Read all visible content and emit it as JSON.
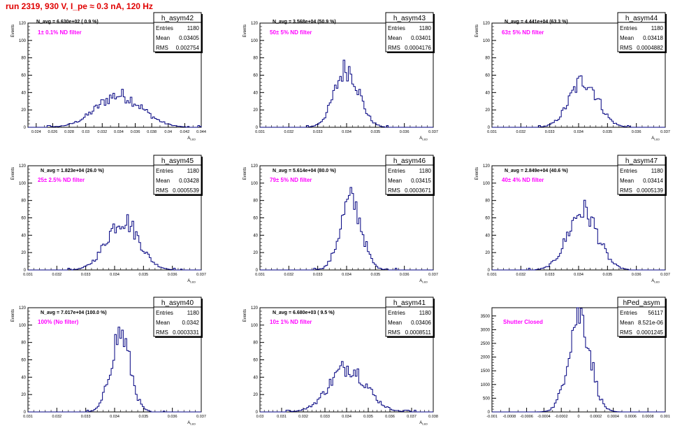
{
  "header": {
    "title": "run 2319,   930 V, I_pe ≈ 0.3 nA, 120 Hz"
  },
  "colors": {
    "histogram": "#000080",
    "annotation": "#ff00ff",
    "title": "#e00000"
  },
  "chart_data": [
    {
      "type": "bar",
      "stats_title": "h_asym42",
      "entries": "1180",
      "mean": "0.03405",
      "rms": "0.002754",
      "navg_text": "N_avg = 6.630e+02 ( 0.9 %)",
      "filter_text": "1± 0.1% ND filter",
      "xlabel": "A",
      "xlabel_sub": "LED",
      "ylabel": "Events",
      "xlim": [
        0.023,
        0.044
      ],
      "ylim": [
        0,
        120
      ],
      "xticks": [
        0.024,
        0.026,
        0.028,
        0.03,
        0.032,
        0.034,
        0.036,
        0.038,
        0.04,
        0.042,
        0.044
      ],
      "xtick_labels": [
        "0.024",
        "0.026",
        "0.028",
        "0.03",
        "0.032",
        "0.034",
        "0.036",
        "0.038",
        "0.04",
        "0.042",
        "0.044"
      ],
      "yticks": [
        0,
        20,
        40,
        60,
        80,
        100,
        120
      ],
      "ytick_labels": [
        "0",
        "20",
        "40",
        "60",
        "80",
        "100",
        "120"
      ],
      "mu": 0.03405,
      "sigma": 0.002754,
      "peak": 37
    },
    {
      "type": "bar",
      "stats_title": "h_asym43",
      "entries": "1180",
      "mean": "0.03401",
      "rms": "0.0004176",
      "navg_text": "N_avg = 3.568e+04 (50.9 %)",
      "filter_text": "50± 5% ND filter",
      "xlabel": "A",
      "xlabel_sub": "LED",
      "ylabel": "Events",
      "xlim": [
        0.031,
        0.037
      ],
      "ylim": [
        0,
        120
      ],
      "xticks": [
        0.031,
        0.032,
        0.033,
        0.034,
        0.035,
        0.036,
        0.037
      ],
      "xtick_labels": [
        "0.031",
        "0.032",
        "0.033",
        "0.034",
        "0.035",
        "0.036",
        "0.037"
      ],
      "yticks": [
        0,
        20,
        40,
        60,
        80,
        100,
        120
      ],
      "ytick_labels": [
        "0",
        "20",
        "40",
        "60",
        "80",
        "100",
        "120"
      ],
      "mu": 0.03401,
      "sigma": 0.0004176,
      "peak": 68
    },
    {
      "type": "bar",
      "stats_title": "h_asym44",
      "entries": "1180",
      "mean": "0.03418",
      "rms": "0.0004882",
      "navg_text": "N_avg = 4.441e+04 (63.3 %)",
      "filter_text": "63± 5% ND filter",
      "xlabel": "A",
      "xlabel_sub": "LED",
      "ylabel": "Events",
      "xlim": [
        0.031,
        0.037
      ],
      "ylim": [
        0,
        120
      ],
      "xticks": [
        0.031,
        0.032,
        0.033,
        0.034,
        0.035,
        0.036,
        0.037
      ],
      "xtick_labels": [
        "0.031",
        "0.032",
        "0.033",
        "0.034",
        "0.035",
        "0.036",
        "0.037"
      ],
      "yticks": [
        0,
        20,
        40,
        60,
        80,
        100,
        120
      ],
      "ytick_labels": [
        "0",
        "20",
        "40",
        "60",
        "80",
        "100",
        "120"
      ],
      "mu": 0.03418,
      "sigma": 0.0004882,
      "peak": 54
    },
    {
      "type": "bar",
      "stats_title": "h_asym45",
      "entries": "1180",
      "mean": "0.03428",
      "rms": "0.0005539",
      "navg_text": "N_avg = 1.823e+04 (26.0 %)",
      "filter_text": "25± 2.5% ND filter",
      "xlabel": "A",
      "xlabel_sub": "LED",
      "ylabel": "Events",
      "xlim": [
        0.031,
        0.037
      ],
      "ylim": [
        0,
        120
      ],
      "xticks": [
        0.031,
        0.032,
        0.033,
        0.034,
        0.035,
        0.036,
        0.037
      ],
      "xtick_labels": [
        "0.031",
        "0.032",
        "0.033",
        "0.034",
        "0.035",
        "0.036",
        "0.037"
      ],
      "yticks": [
        0,
        20,
        40,
        60,
        80,
        100,
        120
      ],
      "ytick_labels": [
        "0",
        "20",
        "40",
        "60",
        "80",
        "100",
        "120"
      ],
      "mu": 0.03428,
      "sigma": 0.0005539,
      "peak": 58
    },
    {
      "type": "bar",
      "stats_title": "h_asym46",
      "entries": "1180",
      "mean": "0.03415",
      "rms": "0.0003671",
      "navg_text": "N_avg = 5.614e+04 (80.0 %)",
      "filter_text": "79± 5% ND filter",
      "xlabel": "A",
      "xlabel_sub": "LED",
      "ylabel": "Events",
      "xlim": [
        0.031,
        0.037
      ],
      "ylim": [
        0,
        120
      ],
      "xticks": [
        0.031,
        0.032,
        0.033,
        0.034,
        0.035,
        0.036,
        0.037
      ],
      "xtick_labels": [
        "0.031",
        "0.032",
        "0.033",
        "0.034",
        "0.035",
        "0.036",
        "0.037"
      ],
      "yticks": [
        0,
        20,
        40,
        60,
        80,
        100,
        120
      ],
      "ytick_labels": [
        "0",
        "20",
        "40",
        "60",
        "80",
        "100",
        "120"
      ],
      "mu": 0.03415,
      "sigma": 0.0003671,
      "peak": 80
    },
    {
      "type": "bar",
      "stats_title": "h_asym47",
      "entries": "1180",
      "mean": "0.03414",
      "rms": "0.0005139",
      "navg_text": "N_avg = 2.849e+04 (40.6 %)",
      "filter_text": "40± 4% ND filter",
      "xlabel": "A",
      "xlabel_sub": "LED",
      "ylabel": "Events",
      "xlim": [
        0.031,
        0.037
      ],
      "ylim": [
        0,
        120
      ],
      "xticks": [
        0.031,
        0.032,
        0.033,
        0.034,
        0.035,
        0.036,
        0.037
      ],
      "xtick_labels": [
        "0.031",
        "0.032",
        "0.033",
        "0.034",
        "0.035",
        "0.036",
        "0.037"
      ],
      "yticks": [
        0,
        20,
        40,
        60,
        80,
        100,
        120
      ],
      "ytick_labels": [
        "0",
        "20",
        "40",
        "60",
        "80",
        "100",
        "120"
      ],
      "mu": 0.03414,
      "sigma": 0.0005139,
      "peak": 68
    },
    {
      "type": "bar",
      "stats_title": "h_asym40",
      "entries": "1180",
      "mean": "0.0342",
      "rms": "0.0003331",
      "navg_text": "N_avg = 7.017e+04 (100.0 %)",
      "filter_text": "100% (No filter)",
      "xlabel": "A",
      "xlabel_sub": "LED",
      "ylabel": "Events",
      "xlim": [
        0.031,
        0.037
      ],
      "ylim": [
        0,
        120
      ],
      "xticks": [
        0.031,
        0.032,
        0.033,
        0.034,
        0.035,
        0.036,
        0.037
      ],
      "xtick_labels": [
        "0.031",
        "0.032",
        "0.033",
        "0.034",
        "0.035",
        "0.036",
        "0.037"
      ],
      "yticks": [
        0,
        20,
        40,
        60,
        80,
        100,
        120
      ],
      "ytick_labels": [
        "0",
        "20",
        "40",
        "60",
        "80",
        "100",
        "120"
      ],
      "mu": 0.0342,
      "sigma": 0.0003331,
      "peak": 90
    },
    {
      "type": "bar",
      "stats_title": "h_asym41",
      "entries": "1180",
      "mean": "0.03406",
      "rms": "0.0008511",
      "navg_text": "N_avg = 6.680e+03 ( 9.5 %)",
      "filter_text": "10± 1% ND filter",
      "xlabel": "A",
      "xlabel_sub": "LED",
      "ylabel": "Events",
      "xlim": [
        0.03,
        0.038
      ],
      "ylim": [
        0,
        120
      ],
      "xticks": [
        0.03,
        0.031,
        0.032,
        0.033,
        0.034,
        0.035,
        0.036,
        0.037,
        0.038
      ],
      "xtick_labels": [
        "0.03",
        "0.031",
        "0.032",
        "0.033",
        "0.034",
        "0.035",
        "0.036",
        "0.037",
        "0.038"
      ],
      "yticks": [
        0,
        20,
        40,
        60,
        80,
        100,
        120
      ],
      "ytick_labels": [
        "0",
        "20",
        "40",
        "60",
        "80",
        "100",
        "120"
      ],
      "mu": 0.03406,
      "sigma": 0.0008511,
      "peak": 52
    },
    {
      "type": "bar",
      "stats_title": "hPed_asym",
      "entries": "56117",
      "mean": "8.521e-06",
      "rms": "0.0001245",
      "navg_text": "",
      "filter_text": "Shutter Closed",
      "xlabel": "",
      "xlabel_sub": "",
      "ylabel": "",
      "xlim": [
        -0.001,
        0.001
      ],
      "ylim": [
        0,
        3800
      ],
      "xticks": [
        -0.001,
        -0.0008,
        -0.0006,
        -0.0004,
        -0.0002,
        0,
        0.0002,
        0.0004,
        0.0006,
        0.0008,
        0.001
      ],
      "xtick_labels": [
        "-0.001",
        "-0.0008",
        "-0.0006",
        "-0.0004",
        "-0.0002",
        "0",
        "0.0002",
        "0.0004",
        "0.0006",
        "0.0008",
        "0.001"
      ],
      "yticks": [
        0,
        500,
        1000,
        1500,
        2000,
        2500,
        3000,
        3500
      ],
      "ytick_labels": [
        "0",
        "500",
        "1000",
        "1500",
        "2000",
        "2500",
        "3000",
        "3500"
      ],
      "mu": 8.521e-06,
      "sigma": 0.0001245,
      "peak": 3580
    }
  ]
}
